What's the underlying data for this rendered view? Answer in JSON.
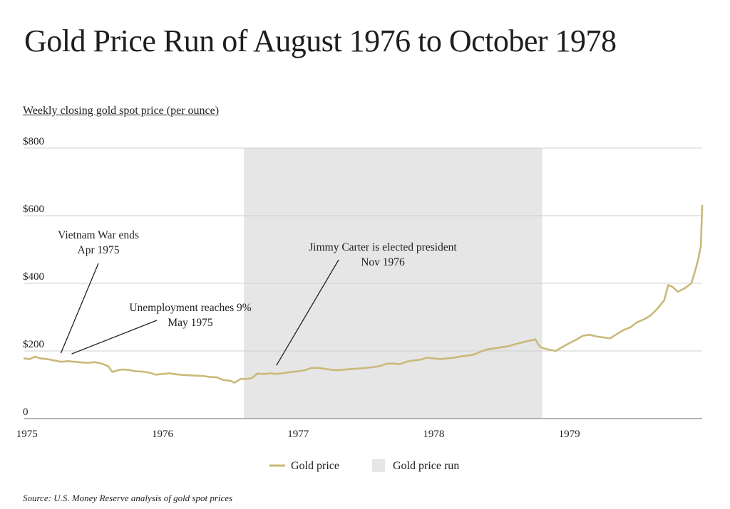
{
  "title": "Gold Price Run of August 1976 to October 1978",
  "subtitle": "Weekly closing gold spot price (per ounce)",
  "source": "Source: U.S. Money Reserve analysis of gold spot prices",
  "colors": {
    "line": "#c9b979",
    "band": "#e6e6e6",
    "grid": "#cfcfcf",
    "axis": "#888888"
  },
  "chart_data": {
    "type": "line",
    "title": "Gold Price Run of August 1976 to October 1978",
    "ylabel": "Weekly closing gold spot price (per ounce)",
    "xlabel": "",
    "xlim": [
      1974.98,
      1979.98
    ],
    "ylim": [
      0,
      800
    ],
    "grid": true,
    "legend_position": "bottom",
    "yticks": [
      {
        "value": 800,
        "label": "$800"
      },
      {
        "value": 600,
        "label": "$600"
      },
      {
        "value": 400,
        "label": "$400"
      },
      {
        "value": 200,
        "label": "$200"
      },
      {
        "value": 0,
        "label": "0"
      }
    ],
    "xticks": [
      {
        "value": 1975,
        "label": "1975"
      },
      {
        "value": 1976,
        "label": "1976"
      },
      {
        "value": 1977,
        "label": "1977"
      },
      {
        "value": 1978,
        "label": "1978"
      },
      {
        "value": 1979,
        "label": "1979"
      }
    ],
    "band": {
      "name": "Gold price run",
      "x_start": 1976.6,
      "x_end": 1978.8
    },
    "series": [
      {
        "name": "Gold price",
        "x": [
          1974.98,
          1975.02,
          1975.06,
          1975.1,
          1975.15,
          1975.2,
          1975.25,
          1975.3,
          1975.35,
          1975.4,
          1975.45,
          1975.5,
          1975.55,
          1975.6,
          1975.63,
          1975.67,
          1975.7,
          1975.75,
          1975.8,
          1975.85,
          1975.9,
          1975.95,
          1976.0,
          1976.05,
          1976.1,
          1976.15,
          1976.2,
          1976.25,
          1976.3,
          1976.35,
          1976.4,
          1976.45,
          1976.5,
          1976.53,
          1976.58,
          1976.62,
          1976.66,
          1976.7,
          1976.75,
          1976.8,
          1976.84,
          1976.9,
          1976.95,
          1977.0,
          1977.05,
          1977.1,
          1977.15,
          1977.2,
          1977.25,
          1977.3,
          1977.35,
          1977.4,
          1977.45,
          1977.5,
          1977.55,
          1977.6,
          1977.65,
          1977.7,
          1977.75,
          1977.8,
          1977.85,
          1977.9,
          1977.95,
          1978.0,
          1978.05,
          1978.1,
          1978.15,
          1978.2,
          1978.25,
          1978.3,
          1978.35,
          1978.4,
          1978.45,
          1978.5,
          1978.55,
          1978.6,
          1978.65,
          1978.7,
          1978.75,
          1978.78,
          1978.8,
          1978.85,
          1978.9,
          1978.95,
          1979.0,
          1979.05,
          1979.1,
          1979.15,
          1979.2,
          1979.25,
          1979.3,
          1979.35,
          1979.4,
          1979.45,
          1979.5,
          1979.55,
          1979.6,
          1979.65,
          1979.7,
          1979.73,
          1979.76,
          1979.8,
          1979.85,
          1979.9,
          1979.93,
          1979.95,
          1979.97,
          1979.98
        ],
        "values": [
          178,
          176,
          183,
          178,
          176,
          172,
          168,
          170,
          168,
          166,
          165,
          167,
          163,
          155,
          138,
          143,
          145,
          144,
          140,
          139,
          136,
          130,
          132,
          134,
          131,
          129,
          128,
          127,
          126,
          123,
          122,
          114,
          112,
          106,
          118,
          117,
          120,
          133,
          132,
          134,
          132,
          135,
          138,
          140,
          143,
          150,
          150,
          147,
          144,
          143,
          145,
          147,
          148,
          150,
          152,
          155,
          162,
          163,
          161,
          168,
          172,
          174,
          180,
          178,
          176,
          178,
          180,
          184,
          186,
          190,
          199,
          205,
          208,
          211,
          214,
          220,
          225,
          230,
          234,
          214,
          209,
          204,
          200,
          212,
          223,
          233,
          245,
          248,
          243,
          240,
          237,
          250,
          262,
          270,
          285,
          293,
          305,
          325,
          350,
          395,
          390,
          375,
          385,
          400,
          440,
          470,
          510,
          630
        ]
      }
    ],
    "annotations": [
      {
        "lines": [
          "Vietnam War ends",
          "Apr 1975"
        ],
        "date": 1975.25,
        "price": 168
      },
      {
        "lines": [
          "Unemployment reaches 9%",
          "May 1975"
        ],
        "date": 1975.33,
        "price": 166
      },
      {
        "lines": [
          "Jimmy Carter is elected president",
          "Nov 1976"
        ],
        "date": 1976.84,
        "price": 132
      }
    ]
  }
}
